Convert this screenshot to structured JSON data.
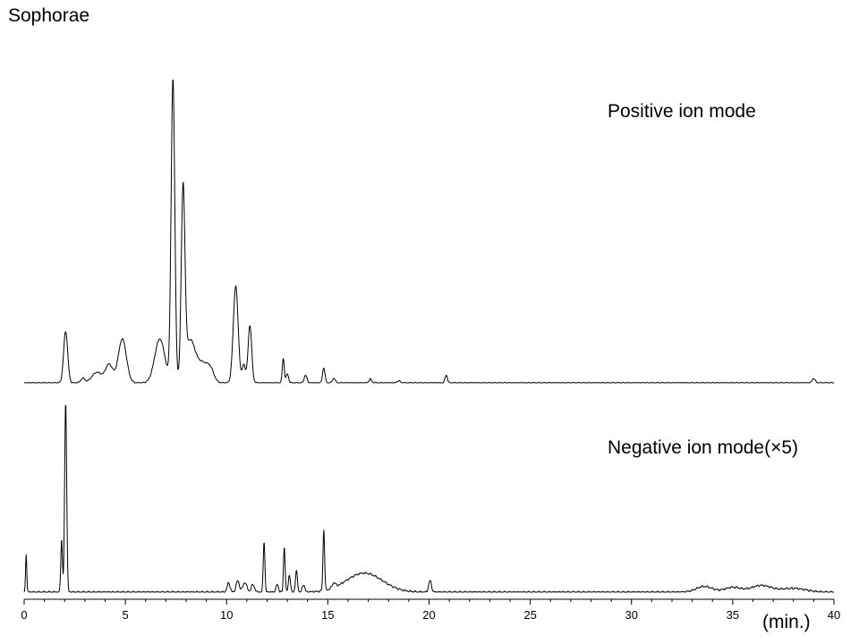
{
  "chart_data": {
    "type": "line",
    "title": "Sophorae",
    "xlabel": "(min.)",
    "xlim": [
      0,
      40
    ],
    "x_ticks": [
      "0",
      "5",
      "10",
      "15",
      "20",
      "25",
      "30",
      "35",
      "40"
    ],
    "y_axis_shown": false,
    "grid": false,
    "panels": [
      {
        "name": "Positive ion mode",
        "description": "stacked upper trace, relative intensity 0-100",
        "peaks": [
          {
            "rt": 2.05,
            "height": 17,
            "width": 0.1
          },
          {
            "rt": 2.9,
            "height": 1.5,
            "width": 0.1
          },
          {
            "rt": 3.6,
            "height": 3.5,
            "width": 0.25
          },
          {
            "rt": 4.2,
            "height": 6,
            "width": 0.18
          },
          {
            "rt": 4.85,
            "height": 14.5,
            "width": 0.2
          },
          {
            "rt": 6.7,
            "height": 14.5,
            "width": 0.25
          },
          {
            "rt": 7.35,
            "height": 100,
            "width": 0.09
          },
          {
            "rt": 7.85,
            "height": 61,
            "width": 0.09
          },
          {
            "rt": 8.2,
            "height": 14,
            "width": 0.25
          },
          {
            "rt": 8.8,
            "height": 6,
            "width": 0.25
          },
          {
            "rt": 9.2,
            "height": 4,
            "width": 0.18
          },
          {
            "rt": 10.45,
            "height": 32,
            "width": 0.12
          },
          {
            "rt": 10.85,
            "height": 6,
            "width": 0.08
          },
          {
            "rt": 11.15,
            "height": 19,
            "width": 0.09
          },
          {
            "rt": 12.8,
            "height": 8,
            "width": 0.05
          },
          {
            "rt": 13.0,
            "height": 3,
            "width": 0.06
          },
          {
            "rt": 13.9,
            "height": 2.5,
            "width": 0.07
          },
          {
            "rt": 14.8,
            "height": 5,
            "width": 0.06
          },
          {
            "rt": 15.3,
            "height": 1.5,
            "width": 0.07
          },
          {
            "rt": 17.1,
            "height": 1.2,
            "width": 0.07
          },
          {
            "rt": 18.5,
            "height": 0.7,
            "width": 0.07
          },
          {
            "rt": 20.85,
            "height": 2.5,
            "width": 0.06
          },
          {
            "rt": 39.0,
            "height": 1.5,
            "width": 0.07
          }
        ]
      },
      {
        "name": "Negative ion mode(×5)",
        "description": "stacked lower trace, relative intensity 0-100",
        "peaks": [
          {
            "rt": 0.1,
            "height": 20,
            "width": 0.03
          },
          {
            "rt": 1.85,
            "height": 28,
            "width": 0.04
          },
          {
            "rt": 2.05,
            "height": 100,
            "width": 0.05
          },
          {
            "rt": 10.1,
            "height": 5,
            "width": 0.07
          },
          {
            "rt": 10.55,
            "height": 6,
            "width": 0.08
          },
          {
            "rt": 10.9,
            "height": 5,
            "width": 0.1
          },
          {
            "rt": 11.3,
            "height": 4,
            "width": 0.08
          },
          {
            "rt": 11.85,
            "height": 27,
            "width": 0.04
          },
          {
            "rt": 12.5,
            "height": 4,
            "width": 0.06
          },
          {
            "rt": 12.85,
            "height": 24,
            "width": 0.04
          },
          {
            "rt": 13.1,
            "height": 9,
            "width": 0.05
          },
          {
            "rt": 13.45,
            "height": 11,
            "width": 0.05
          },
          {
            "rt": 13.8,
            "height": 4,
            "width": 0.06
          },
          {
            "rt": 14.8,
            "height": 32,
            "width": 0.04
          },
          {
            "rt": 15.3,
            "height": 2.5,
            "width": 0.08
          },
          {
            "rt": 16.8,
            "height": 10,
            "width": 0.9
          },
          {
            "rt": 20.05,
            "height": 6,
            "width": 0.07
          },
          {
            "rt": 33.6,
            "height": 3,
            "width": 0.4
          },
          {
            "rt": 35.0,
            "height": 2.5,
            "width": 0.4
          },
          {
            "rt": 36.4,
            "height": 3.5,
            "width": 0.5
          },
          {
            "rt": 38.0,
            "height": 2,
            "width": 0.6
          }
        ]
      }
    ]
  }
}
